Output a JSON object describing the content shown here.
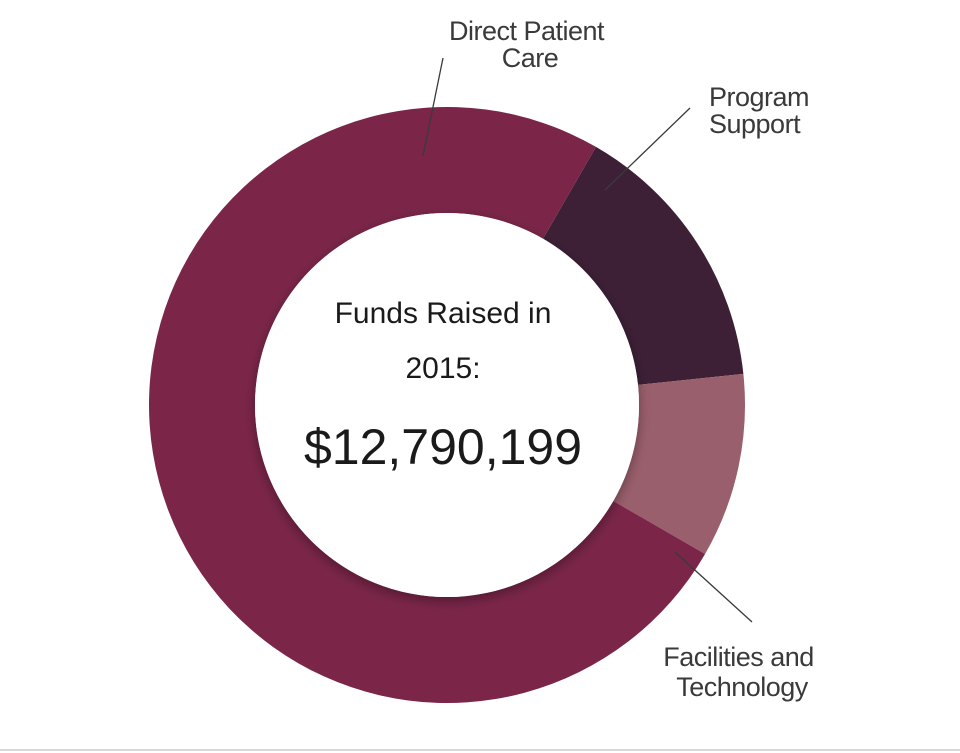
{
  "chart_data": {
    "type": "pie",
    "variant": "donut",
    "center": {
      "title_line1": "Funds Raised in",
      "title_line2": "2015:",
      "total": "$12,790,199"
    },
    "slices": [
      {
        "label_lines": [
          "Direct Patient",
          "Care"
        ],
        "value": 15,
        "color": "#3d2036"
      },
      {
        "label_lines": [
          "Program",
          "Support"
        ],
        "value": 10,
        "color": "#9a5f6c"
      },
      {
        "label_lines": [
          "Facilities and",
          "Technology"
        ],
        "value": 75,
        "color": "#7b2649"
      }
    ],
    "legend": "none",
    "grid": false
  }
}
